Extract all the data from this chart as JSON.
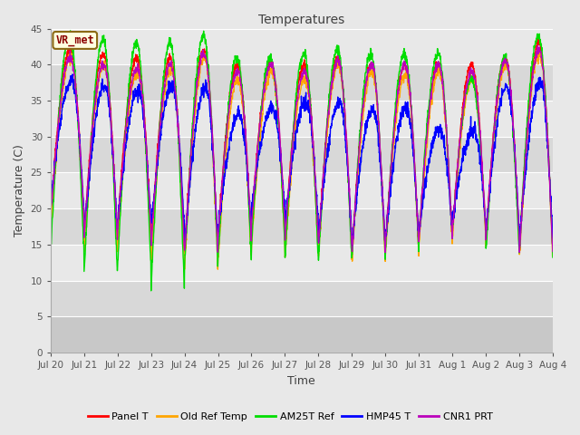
{
  "title": "Temperatures",
  "xlabel": "Time",
  "ylabel": "Temperature (C)",
  "ylim": [
    0,
    45
  ],
  "yticks": [
    0,
    5,
    10,
    15,
    20,
    25,
    30,
    35,
    40,
    45
  ],
  "date_labels": [
    "Jul 20",
    "Jul 21",
    "Jul 22",
    "Jul 23",
    "Jul 24",
    "Jul 25",
    "Jul 26",
    "Jul 27",
    "Jul 28",
    "Jul 29",
    "Jul 30",
    "Jul 31",
    "Aug 1",
    "Aug 2",
    "Aug 3",
    "Aug 4"
  ],
  "annotation_text": "VR_met",
  "annotation_color": "#8B0000",
  "annotation_bg": "#FFFFE0",
  "annotation_border": "#8B6914",
  "legend_entries": [
    "Panel T",
    "Old Ref Temp",
    "AM25T Ref",
    "HMP45 T",
    "CNR1 PRT"
  ],
  "line_colors": [
    "#FF0000",
    "#FFA500",
    "#00DD00",
    "#0000FF",
    "#BB00BB"
  ],
  "line_width": 1.0,
  "bg_color": "#E8E8E8",
  "plot_bg_bands": [
    {
      "ymin": 0,
      "ymax": 5,
      "color": "#C8C8C8"
    },
    {
      "ymin": 5,
      "ymax": 10,
      "color": "#D8D8D8"
    },
    {
      "ymin": 10,
      "ymax": 15,
      "color": "#E8E8E8"
    },
    {
      "ymin": 15,
      "ymax": 20,
      "color": "#D8D8D8"
    },
    {
      "ymin": 20,
      "ymax": 25,
      "color": "#E8E8E8"
    },
    {
      "ymin": 25,
      "ymax": 30,
      "color": "#D8D8D8"
    },
    {
      "ymin": 30,
      "ymax": 35,
      "color": "#E8E8E8"
    },
    {
      "ymin": 35,
      "ymax": 40,
      "color": "#D8D8D8"
    },
    {
      "ymin": 40,
      "ymax": 45,
      "color": "#E8E8E8"
    }
  ],
  "n_days": 15,
  "samples_per_day": 144,
  "peaks_panel": [
    42,
    41.5,
    41,
    41,
    42,
    40,
    40.5,
    40,
    41,
    40,
    40,
    40,
    40,
    41,
    43
  ],
  "peaks_old": [
    41,
    40,
    39,
    39.5,
    41,
    38,
    39,
    38,
    40,
    39,
    38.5,
    39,
    38,
    40,
    41.5
  ],
  "peaks_am25": [
    44,
    43.5,
    43,
    43,
    44,
    41,
    41,
    41.5,
    42,
    41.5,
    41.5,
    41.5,
    38,
    41,
    44
  ],
  "peaks_hmp45": [
    38,
    37,
    36.5,
    37,
    37,
    33,
    34,
    35,
    35,
    34,
    34,
    31,
    31,
    37,
    37.5
  ],
  "peaks_cnr1": [
    41,
    40,
    39.5,
    40,
    41.5,
    39,
    40,
    39,
    40.5,
    40,
    40,
    40,
    39,
    40.5,
    42
  ],
  "troughs_panel": [
    19,
    16,
    17.5,
    15,
    14,
    16,
    18,
    16,
    15,
    14,
    15,
    16,
    17,
    16,
    14.5
  ],
  "troughs_old": [
    17,
    14,
    15,
    12.5,
    12,
    13,
    15,
    13.5,
    13.5,
    13,
    14,
    15,
    16,
    15,
    13.5
  ],
  "troughs_am25": [
    14,
    11,
    12,
    9,
    12,
    13,
    15,
    13,
    13,
    13,
    14,
    16,
    17,
    14,
    14
  ],
  "troughs_hmp45": [
    20,
    17,
    18,
    17.5,
    15,
    17,
    20,
    18,
    16,
    15,
    16,
    17,
    18,
    17,
    15.5
  ],
  "troughs_cnr1": [
    19,
    16,
    17,
    15,
    14,
    16,
    18,
    16,
    15,
    14,
    15,
    16,
    17,
    16,
    14
  ]
}
